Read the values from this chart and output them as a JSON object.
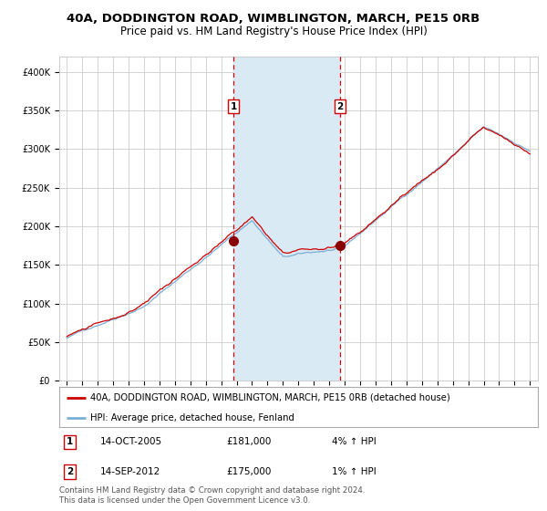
{
  "title": "40A, DODDINGTON ROAD, WIMBLINGTON, MARCH, PE15 0RB",
  "subtitle": "Price paid vs. HM Land Registry's House Price Index (HPI)",
  "bg_color": "#ffffff",
  "plot_bg_color": "#ffffff",
  "grid_color": "#cccccc",
  "red_line_color": "#cc0000",
  "blue_line_color": "#7aafd4",
  "shade_color": "#daeaf5",
  "point1_date_num": 2005.79,
  "point1_value": 181000,
  "point2_date_num": 2012.71,
  "point2_value": 175000,
  "vline1_x": 2005.79,
  "vline2_x": 2012.71,
  "shade_x1": 2005.79,
  "shade_x2": 2012.71,
  "yticks": [
    0,
    50000,
    100000,
    150000,
    200000,
    250000,
    300000,
    350000,
    400000
  ],
  "ytick_labels": [
    "£0",
    "£50K",
    "£100K",
    "£150K",
    "£200K",
    "£250K",
    "£300K",
    "£350K",
    "£400K"
  ],
  "xmin": 1994.5,
  "xmax": 2025.5,
  "ymin": 0,
  "ymax": 420000,
  "legend_label_red": "40A, DODDINGTON ROAD, WIMBLINGTON, MARCH, PE15 0RB (detached house)",
  "legend_label_blue": "HPI: Average price, detached house, Fenland",
  "annotation1_label": "1",
  "annotation2_label": "2",
  "table_row1": [
    "1",
    "14-OCT-2005",
    "£181,000",
    "4% ↑ HPI"
  ],
  "table_row2": [
    "2",
    "14-SEP-2012",
    "£175,000",
    "1% ↑ HPI"
  ],
  "footer": "Contains HM Land Registry data © Crown copyright and database right 2024.\nThis data is licensed under the Open Government Licence v3.0.",
  "title_fontsize": 9.5,
  "subtitle_fontsize": 8.5,
  "tick_fontsize": 7
}
